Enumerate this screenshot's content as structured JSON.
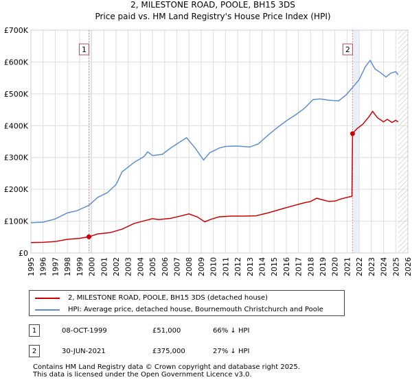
{
  "chart_data": {
    "type": "line",
    "title": "2, MILESTONE ROAD, POOLE, BH15 3DS",
    "subtitle": "Price paid vs. HM Land Registry's House Price Index (HPI)",
    "xlim": [
      1995,
      2026
    ],
    "ylim": [
      0,
      700000
    ],
    "x_ticks": [
      "1995",
      "1996",
      "1997",
      "1998",
      "1999",
      "2000",
      "2001",
      "2002",
      "2003",
      "2004",
      "2005",
      "2006",
      "2007",
      "2008",
      "2009",
      "2010",
      "2011",
      "2012",
      "2013",
      "2014",
      "2015",
      "2016",
      "2017",
      "2018",
      "2019",
      "2020",
      "2021",
      "2022",
      "2023",
      "2024",
      "2025",
      "2026"
    ],
    "y_ticks": [
      {
        "value": 0,
        "label": "£0"
      },
      {
        "value": 100000,
        "label": "£100K"
      },
      {
        "value": 200000,
        "label": "£200K"
      },
      {
        "value": 300000,
        "label": "£300K"
      },
      {
        "value": 400000,
        "label": "£400K"
      },
      {
        "value": 500000,
        "label": "£500K"
      },
      {
        "value": 600000,
        "label": "£600K"
      },
      {
        "value": 700000,
        "label": "£700K"
      }
    ],
    "series": [
      {
        "name": "2, MILESTONE ROAD, POOLE, BH15 3DS (detached house)",
        "color": "#cc0000",
        "points": [
          [
            1995.0,
            33000
          ],
          [
            1996.0,
            33500
          ],
          [
            1997.0,
            36000
          ],
          [
            1998.0,
            43000
          ],
          [
            1999.0,
            46000
          ],
          [
            1999.77,
            51000
          ],
          [
            2000.5,
            60000
          ],
          [
            2001.5,
            64000
          ],
          [
            2002.5,
            75000
          ],
          [
            2003.5,
            93000
          ],
          [
            2004.5,
            103000
          ],
          [
            2005.0,
            108000
          ],
          [
            2005.5,
            105000
          ],
          [
            2006.5,
            109000
          ],
          [
            2007.5,
            118000
          ],
          [
            2008.0,
            123000
          ],
          [
            2008.7,
            113000
          ],
          [
            2009.3,
            98000
          ],
          [
            2009.8,
            106000
          ],
          [
            2010.5,
            114000
          ],
          [
            2011.5,
            116000
          ],
          [
            2012.5,
            116000
          ],
          [
            2013.5,
            117000
          ],
          [
            2014.5,
            126000
          ],
          [
            2015.5,
            137000
          ],
          [
            2016.5,
            148000
          ],
          [
            2017.5,
            158000
          ],
          [
            2018.0,
            162000
          ],
          [
            2018.5,
            172000
          ],
          [
            2019.0,
            167000
          ],
          [
            2019.5,
            162000
          ],
          [
            2020.0,
            163000
          ],
          [
            2020.5,
            170000
          ],
          [
            2021.0,
            175000
          ],
          [
            2021.4,
            178000
          ],
          [
            2021.45,
            375000
          ],
          [
            2021.8,
            390000
          ],
          [
            2022.3,
            405000
          ],
          [
            2022.8,
            428000
          ],
          [
            2023.1,
            445000
          ],
          [
            2023.5,
            425000
          ],
          [
            2024.0,
            412000
          ],
          [
            2024.3,
            420000
          ],
          [
            2024.7,
            410000
          ],
          [
            2025.0,
            417000
          ],
          [
            2025.2,
            412000
          ]
        ]
      },
      {
        "name": "HPI: Average price, detached house, Bournemouth Christchurch and Poole",
        "color": "#5a8fd0",
        "points": [
          [
            1995.0,
            95000
          ],
          [
            1996.0,
            97000
          ],
          [
            1997.0,
            107000
          ],
          [
            1998.0,
            126000
          ],
          [
            1998.8,
            133000
          ],
          [
            1999.77,
            150000
          ],
          [
            2000.5,
            175000
          ],
          [
            2001.3,
            190000
          ],
          [
            2002.0,
            215000
          ],
          [
            2002.5,
            255000
          ],
          [
            2003.5,
            285000
          ],
          [
            2004.3,
            303000
          ],
          [
            2004.6,
            318000
          ],
          [
            2005.0,
            306000
          ],
          [
            2005.8,
            310000
          ],
          [
            2006.5,
            330000
          ],
          [
            2007.3,
            350000
          ],
          [
            2007.8,
            362000
          ],
          [
            2008.5,
            330000
          ],
          [
            2009.2,
            292000
          ],
          [
            2009.7,
            315000
          ],
          [
            2010.5,
            330000
          ],
          [
            2011.0,
            335000
          ],
          [
            2012.0,
            336000
          ],
          [
            2013.0,
            333000
          ],
          [
            2013.7,
            343000
          ],
          [
            2014.5,
            370000
          ],
          [
            2015.3,
            395000
          ],
          [
            2016.0,
            415000
          ],
          [
            2016.8,
            435000
          ],
          [
            2017.5,
            455000
          ],
          [
            2018.2,
            482000
          ],
          [
            2018.8,
            484000
          ],
          [
            2019.5,
            480000
          ],
          [
            2020.3,
            478000
          ],
          [
            2020.9,
            496000
          ],
          [
            2021.45,
            520000
          ],
          [
            2022.0,
            545000
          ],
          [
            2022.5,
            585000
          ],
          [
            2022.9,
            605000
          ],
          [
            2023.3,
            578000
          ],
          [
            2023.7,
            568000
          ],
          [
            2024.2,
            553000
          ],
          [
            2024.6,
            565000
          ],
          [
            2025.0,
            570000
          ],
          [
            2025.2,
            560000
          ]
        ]
      }
    ],
    "transactions": [
      {
        "marker": "1",
        "x": 1999.77,
        "value": 51000,
        "date": "08-OCT-1999",
        "price": "£51,000",
        "hpi_diff": "66% ↓ HPI"
      },
      {
        "marker": "2",
        "x": 2021.45,
        "value": 375000,
        "date": "30-JUN-2021",
        "price": "£375,000",
        "hpi_diff": "27% ↓ HPI"
      }
    ],
    "shade_after": 2025.2,
    "colors": {
      "price": "#cc0000",
      "hpi": "#5a8fd0",
      "grid": "#dddddd",
      "vline": "#ee8888",
      "band": "#dde6f4"
    }
  },
  "footer": {
    "line1": "Contains HM Land Registry data © Crown copyright and database right 2025.",
    "line2": "This data is licensed under the Open Government Licence v3.0."
  }
}
